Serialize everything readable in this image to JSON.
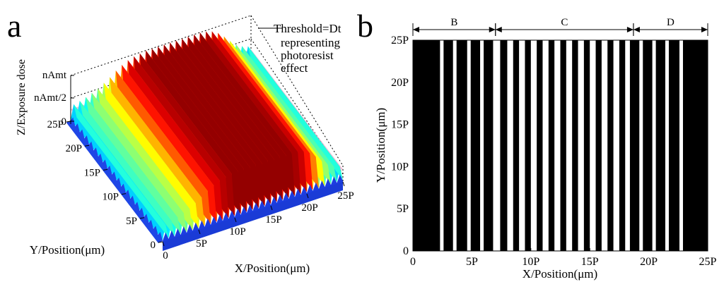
{
  "panels": {
    "a": {
      "label": "a",
      "ylabel": "Y/Position(μm)",
      "xlabel": "X/Position(μm)",
      "zlabel": "Z/Exposure dose",
      "z_ticks": [
        "nAmt",
        "nAmt/2",
        "0"
      ],
      "x_ticks": [
        "0",
        "5P",
        "10P",
        "15P",
        "20P",
        "25P"
      ],
      "y_ticks": [
        "0",
        "5P",
        "10P",
        "15P",
        "20P",
        "25P"
      ],
      "annotation": [
        "Threshold=Dt",
        "representing",
        "photoresist",
        "effect"
      ]
    },
    "b": {
      "label": "b",
      "ylabel": "Y/Position(μm)",
      "xlabel": "X/Position(μm)",
      "x_ticks": [
        "0",
        "5P",
        "10P",
        "15P",
        "20P",
        "25P"
      ],
      "y_ticks": [
        "0",
        "5P",
        "10P",
        "15P",
        "20P",
        "25P"
      ],
      "regions": [
        "B",
        "C",
        "D"
      ]
    }
  },
  "chart_data": [
    {
      "type": "surface",
      "panel": "a",
      "title": "",
      "xlabel": "X/Position(μm)",
      "ylabel": "Y/Position(μm)",
      "zlabel": "Z/Exposure dose",
      "xlim": [
        0,
        25
      ],
      "ylim": [
        0,
        25
      ],
      "unit": "P",
      "z_levels": {
        "nAmt": 1.0,
        "nAmt/2": 0.5,
        "0": 0.0
      },
      "threshold_label": "Threshold=Dt",
      "ridge_count": 30,
      "ridge_peak_profile": [
        0.35,
        0.38,
        0.42,
        0.47,
        0.52,
        0.6,
        0.68,
        0.78,
        0.86,
        0.92,
        0.96,
        0.98,
        1,
        1,
        1,
        1,
        1,
        1,
        1,
        1,
        1,
        1,
        0.98,
        0.94,
        0.86,
        0.74,
        0.6,
        0.48,
        0.4,
        0.35
      ],
      "colormap": "jet"
    },
    {
      "type": "stripe-pattern",
      "panel": "b",
      "xlabel": "X/Position(μm)",
      "ylabel": "Y/Position(μm)",
      "xlim": [
        0,
        25
      ],
      "ylim": [
        0,
        25
      ],
      "unit": "P",
      "regions": [
        {
          "name": "B",
          "x_range": [
            0,
            7
          ]
        },
        {
          "name": "C",
          "x_range": [
            7,
            18.7
          ]
        },
        {
          "name": "D",
          "x_range": [
            18.7,
            25
          ]
        }
      ],
      "black_stripes": [
        [
          0,
          2.3
        ],
        [
          2.6,
          3.4
        ],
        [
          3.7,
          4.6
        ],
        [
          4.9,
          5.7
        ],
        [
          6.0,
          6.8
        ],
        [
          7.4,
          8.0
        ],
        [
          8.5,
          9.0
        ],
        [
          9.5,
          10.0
        ],
        [
          10.5,
          11.0
        ],
        [
          11.5,
          12.0
        ],
        [
          12.5,
          13.0
        ],
        [
          13.5,
          14.0
        ],
        [
          14.5,
          15.0
        ],
        [
          15.5,
          16.0
        ],
        [
          16.5,
          17.0
        ],
        [
          17.5,
          18.0
        ],
        [
          18.4,
          19.2
        ],
        [
          19.5,
          20.3
        ],
        [
          20.6,
          21.4
        ],
        [
          21.7,
          22.6
        ],
        [
          22.9,
          25.0
        ]
      ]
    }
  ]
}
